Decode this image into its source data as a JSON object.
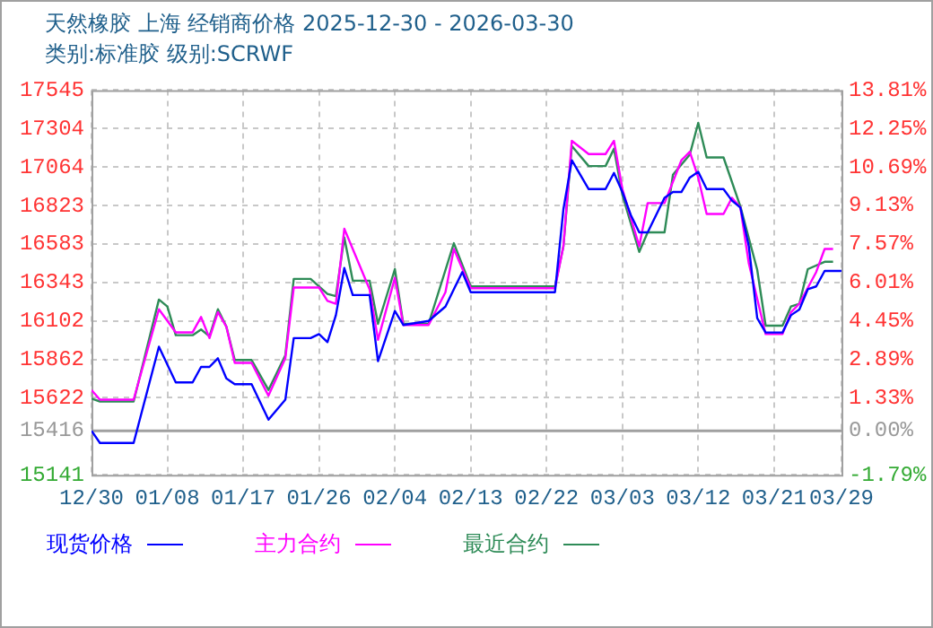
{
  "chart_data": {
    "type": "line",
    "title": "天然橡胶 上海 经销商价格 2025-12-30 - 2026-03-30",
    "subtitle": "类别:标准胶 级别:SCRWF",
    "xlim": [
      "2025-12-30",
      "2026-03-29"
    ],
    "xticks": [
      {
        "value": "2025-12-30",
        "label": "12/30"
      },
      {
        "value": "2026-01-08",
        "label": "01/08"
      },
      {
        "value": "2026-01-17",
        "label": "01/17"
      },
      {
        "value": "2026-01-26",
        "label": "01/26"
      },
      {
        "value": "2026-02-04",
        "label": "02/04"
      },
      {
        "value": "2026-02-13",
        "label": "02/13"
      },
      {
        "value": "2026-02-22",
        "label": "02/22"
      },
      {
        "value": "2026-03-03",
        "label": "03/03"
      },
      {
        "value": "2026-03-12",
        "label": "03/12"
      },
      {
        "value": "2026-03-21",
        "label": "03/21"
      },
      {
        "value": "2026-03-29",
        "label": "03/29"
      }
    ],
    "ylim": [
      15141,
      17545
    ],
    "yticks": [
      15141,
      15416,
      15622,
      15862,
      16102,
      16343,
      16583,
      16823,
      17064,
      17304,
      17545
    ],
    "y2lim": [
      -1.79,
      13.81
    ],
    "y2ticks": [
      {
        "value": -1.79,
        "label": "-1.79%"
      },
      {
        "value": 0,
        "label": "0.00%"
      },
      {
        "value": 1.33,
        "label": "1.33%"
      },
      {
        "value": 2.89,
        "label": "2.89%"
      },
      {
        "value": 4.45,
        "label": "4.45%"
      },
      {
        "value": 6.01,
        "label": "6.01%"
      },
      {
        "value": 7.57,
        "label": "7.57%"
      },
      {
        "value": 9.13,
        "label": "9.13%"
      },
      {
        "value": 10.69,
        "label": "10.69%"
      },
      {
        "value": 12.25,
        "label": "12.25%"
      },
      {
        "value": 13.81,
        "label": "13.81%"
      }
    ],
    "grid": true,
    "legend": "bottom",
    "marker": "none",
    "line_style": "solid",
    "ref_lines": [
      {
        "axis": "y",
        "value": 15416,
        "color": "#a0a0a0"
      }
    ],
    "series": [
      {
        "name": "现货价格",
        "color": "#0000ff",
        "x": [
          "2025-12-30",
          "2025-12-31",
          "2026-01-04",
          "2026-01-07",
          "2026-01-09",
          "2026-01-11",
          "2026-01-12",
          "2026-01-13",
          "2026-01-14",
          "2026-01-15",
          "2026-01-16",
          "2026-01-18",
          "2026-01-20",
          "2026-01-22",
          "2026-01-23",
          "2026-01-25",
          "2026-01-26",
          "2026-01-27",
          "2026-01-28",
          "2026-01-29",
          "2026-01-30",
          "2026-02-01",
          "2026-02-02",
          "2026-02-04",
          "2026-02-05",
          "2026-02-08",
          "2026-02-10",
          "2026-02-12",
          "2026-02-13",
          "2026-02-23",
          "2026-02-24",
          "2026-02-25",
          "2026-02-27",
          "2026-03-01",
          "2026-03-02",
          "2026-03-03",
          "2026-03-04",
          "2026-03-05",
          "2026-03-06",
          "2026-03-08",
          "2026-03-09",
          "2026-03-10",
          "2026-03-11",
          "2026-03-12",
          "2026-03-13",
          "2026-03-15",
          "2026-03-16",
          "2026-03-17",
          "2026-03-18",
          "2026-03-19",
          "2026-03-20",
          "2026-03-22",
          "2026-03-23",
          "2026-03-24",
          "2026-03-25",
          "2026-03-26",
          "2026-03-27",
          "2026-03-29"
        ],
        "values": [
          15416,
          15340,
          15340,
          15941,
          15718,
          15718,
          15815,
          15815,
          15869,
          15743,
          15707,
          15707,
          15485,
          15610,
          15995,
          15995,
          16020,
          15970,
          16138,
          16433,
          16264,
          16264,
          15851,
          16164,
          16077,
          16102,
          16192,
          16408,
          16282,
          16282,
          16800,
          17106,
          16926,
          16926,
          17027,
          16908,
          16764,
          16656,
          16656,
          16872,
          16908,
          16908,
          16998,
          17034,
          16926,
          16926,
          16854,
          16811,
          16569,
          16120,
          16030,
          16030,
          16138,
          16174,
          16300,
          16318,
          16415,
          16415
        ]
      },
      {
        "name": "主力合约",
        "color": "#ff00ff",
        "x": [
          "2025-12-30",
          "2025-12-31",
          "2026-01-04",
          "2026-01-07",
          "2026-01-09",
          "2026-01-11",
          "2026-01-12",
          "2026-01-13",
          "2026-01-14",
          "2026-01-15",
          "2026-01-16",
          "2026-01-18",
          "2026-01-20",
          "2026-01-22",
          "2026-01-23",
          "2026-01-26",
          "2026-01-27",
          "2026-01-28",
          "2026-01-29",
          "2026-01-30",
          "2026-02-01",
          "2026-02-02",
          "2026-02-04",
          "2026-02-05",
          "2026-02-08",
          "2026-02-10",
          "2026-02-11",
          "2026-02-13",
          "2026-02-23",
          "2026-02-24",
          "2026-02-25",
          "2026-02-27",
          "2026-03-01",
          "2026-03-02",
          "2026-03-03",
          "2026-03-05",
          "2026-03-06",
          "2026-03-08",
          "2026-03-10",
          "2026-03-11",
          "2026-03-12",
          "2026-03-13",
          "2026-03-15",
          "2026-03-16",
          "2026-03-17",
          "2026-03-18",
          "2026-03-20",
          "2026-03-22",
          "2026-03-23",
          "2026-03-24",
          "2026-03-26",
          "2026-03-27",
          "2026-03-28"
        ],
        "values": [
          15671,
          15610,
          15610,
          16175,
          16031,
          16031,
          16127,
          15995,
          16157,
          16067,
          15840,
          15840,
          15635,
          15869,
          16311,
          16311,
          16228,
          16210,
          16678,
          16552,
          16300,
          15984,
          16372,
          16077,
          16077,
          16282,
          16552,
          16307,
          16307,
          16569,
          17228,
          17145,
          17145,
          17228,
          16926,
          16569,
          16839,
          16839,
          17106,
          17160,
          16998,
          16771,
          16771,
          16872,
          16811,
          16462,
          16020,
          16020,
          16156,
          16210,
          16408,
          16552,
          16552
        ]
      },
      {
        "name": "最近合约",
        "color": "#2e8b57",
        "x": [
          "2025-12-30",
          "2025-12-31",
          "2026-01-04",
          "2026-01-07",
          "2026-01-08",
          "2026-01-09",
          "2026-01-11",
          "2026-01-12",
          "2026-01-13",
          "2026-01-14",
          "2026-01-15",
          "2026-01-16",
          "2026-01-18",
          "2026-01-20",
          "2026-01-22",
          "2026-01-23",
          "2026-01-25",
          "2026-01-27",
          "2026-01-28",
          "2026-01-29",
          "2026-01-30",
          "2026-02-01",
          "2026-02-02",
          "2026-02-04",
          "2026-02-05",
          "2026-02-08",
          "2026-02-11",
          "2026-02-13",
          "2026-02-23",
          "2026-02-24",
          "2026-02-25",
          "2026-02-27",
          "2026-03-01",
          "2026-03-02",
          "2026-03-03",
          "2026-03-05",
          "2026-03-06",
          "2026-03-08",
          "2026-03-09",
          "2026-03-11",
          "2026-03-12",
          "2026-03-13",
          "2026-03-15",
          "2026-03-17",
          "2026-03-19",
          "2026-03-20",
          "2026-03-22",
          "2026-03-23",
          "2026-03-24",
          "2026-03-25",
          "2026-03-27",
          "2026-03-28"
        ],
        "values": [
          15617,
          15599,
          15599,
          16236,
          16193,
          16013,
          16013,
          16049,
          16006,
          16175,
          16067,
          15858,
          15858,
          15671,
          15887,
          16365,
          16365,
          16271,
          16257,
          16624,
          16354,
          16354,
          16084,
          16426,
          16084,
          16084,
          16588,
          16318,
          16318,
          16569,
          17196,
          17070,
          17070,
          17178,
          16890,
          16534,
          16656,
          16656,
          17016,
          17142,
          17340,
          17124,
          17124,
          16818,
          16422,
          16073,
          16073,
          16192,
          16210,
          16426,
          16472,
          16472
        ]
      }
    ]
  }
}
